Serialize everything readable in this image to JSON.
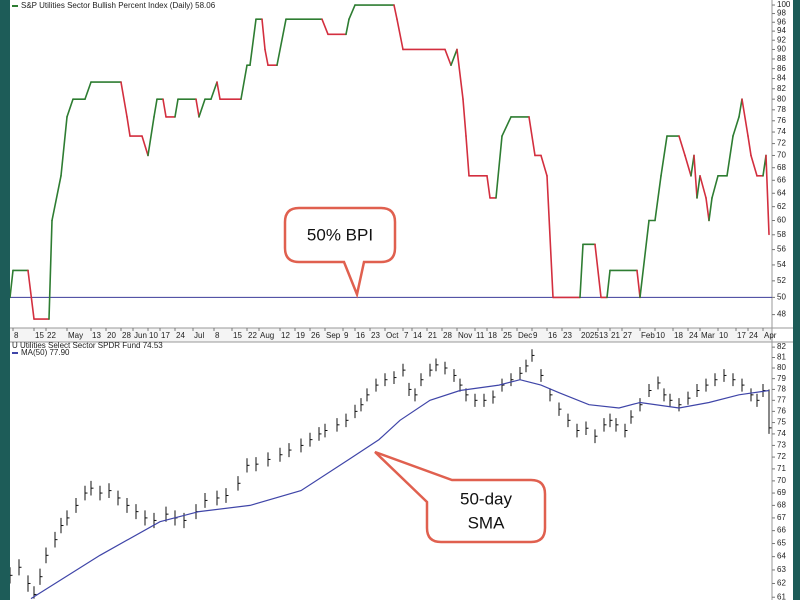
{
  "chart_data": [
    {
      "type": "step",
      "title": "S&P Utilities Sector Bullish Percent Index (Daily) 58.06",
      "up_color": "#2e7d32",
      "down_color": "#d32f3f",
      "xlim": [
        0,
        254
      ],
      "xticks": [
        {
          "value": 1,
          "label": "8"
        },
        {
          "value": 8,
          "label": "15"
        },
        {
          "value": 12,
          "label": "22"
        },
        {
          "value": 19,
          "label": "May"
        },
        {
          "value": 27,
          "label": "13"
        },
        {
          "value": 32,
          "label": "20"
        },
        {
          "value": 37,
          "label": "28"
        },
        {
          "value": 41,
          "label": "Jun"
        },
        {
          "value": 46,
          "label": "10"
        },
        {
          "value": 50,
          "label": "17"
        },
        {
          "value": 55,
          "label": "24"
        },
        {
          "value": 61,
          "label": "Jul"
        },
        {
          "value": 68,
          "label": "8"
        },
        {
          "value": 74,
          "label": "15"
        },
        {
          "value": 79,
          "label": "22"
        },
        {
          "value": 83,
          "label": "Aug"
        },
        {
          "value": 90,
          "label": "12"
        },
        {
          "value": 95,
          "label": "19"
        },
        {
          "value": 100,
          "label": "26"
        },
        {
          "value": 105,
          "label": "Sep"
        },
        {
          "value": 111,
          "label": "9"
        },
        {
          "value": 115,
          "label": "16"
        },
        {
          "value": 120,
          "label": "23"
        },
        {
          "value": 125,
          "label": "Oct"
        },
        {
          "value": 131,
          "label": "7"
        },
        {
          "value": 134,
          "label": "14"
        },
        {
          "value": 139,
          "label": "21"
        },
        {
          "value": 144,
          "label": "28"
        },
        {
          "value": 149,
          "label": "Nov"
        },
        {
          "value": 155,
          "label": "11"
        },
        {
          "value": 159,
          "label": "18"
        },
        {
          "value": 164,
          "label": "25"
        },
        {
          "value": 169,
          "label": "Dec"
        },
        {
          "value": 174,
          "label": "9"
        },
        {
          "value": 179,
          "label": "16"
        },
        {
          "value": 184,
          "label": "23"
        },
        {
          "value": 190,
          "label": "2025"
        },
        {
          "value": 196,
          "label": "13"
        },
        {
          "value": 200,
          "label": "21"
        },
        {
          "value": 204,
          "label": "27"
        },
        {
          "value": 210,
          "label": "Feb"
        },
        {
          "value": 215,
          "label": "10"
        },
        {
          "value": 221,
          "label": "18"
        },
        {
          "value": 226,
          "label": "24"
        },
        {
          "value": 230,
          "label": "Mar"
        },
        {
          "value": 236,
          "label": "10"
        },
        {
          "value": 242,
          "label": "17"
        },
        {
          "value": 246,
          "label": "24"
        },
        {
          "value": 251,
          "label": "Apr"
        }
      ],
      "log_scale": true,
      "ylim": [
        46.5,
        101.2
      ],
      "yticks": [
        100,
        98,
        96,
        94,
        92,
        90,
        88,
        86,
        84,
        82,
        80,
        78,
        76,
        74,
        72,
        70,
        68,
        66,
        64,
        62,
        60,
        58,
        56,
        54,
        52,
        50,
        48
      ],
      "x": [
        0,
        1,
        6,
        8,
        13,
        14,
        17,
        19,
        21,
        25,
        27,
        37,
        39,
        40,
        44,
        46,
        48,
        49,
        51,
        52,
        55,
        56,
        62,
        63,
        65,
        67,
        69,
        70,
        77,
        79,
        80,
        82,
        84,
        85,
        86,
        89,
        92,
        104,
        106,
        112,
        113,
        115,
        128,
        129,
        131,
        145,
        147,
        149,
        151,
        152,
        153,
        159,
        160,
        162,
        164,
        167,
        173,
        175,
        177,
        179,
        181,
        190,
        191,
        195,
        197,
        199,
        200,
        209,
        210,
        213,
        215,
        217,
        219,
        223,
        225,
        227,
        228,
        229,
        230,
        232,
        233,
        234,
        236,
        239,
        241,
        243,
        244,
        246,
        247,
        249,
        251,
        252,
        253
      ],
      "values": [
        50,
        53.3,
        53.3,
        47.5,
        47.5,
        60,
        66.7,
        76.7,
        80,
        80,
        83.3,
        83.3,
        76.7,
        73.3,
        73.3,
        70,
        76.7,
        80,
        80,
        76.7,
        76.7,
        80,
        80,
        76.7,
        80,
        80,
        83.3,
        80,
        80,
        86.7,
        86.7,
        96.7,
        96.7,
        90,
        86.7,
        86.7,
        96.7,
        96.7,
        93.3,
        93.3,
        96.7,
        100,
        100,
        96.7,
        90,
        90,
        86.7,
        90,
        80,
        73.3,
        66.7,
        66.7,
        63.3,
        63.3,
        73.3,
        76.7,
        76.7,
        70,
        70,
        66.7,
        50,
        50,
        56.7,
        56.7,
        50,
        50,
        53.3,
        53.3,
        50,
        60,
        60,
        66.7,
        73.3,
        73.3,
        70,
        66.7,
        70,
        63.3,
        66.7,
        63.3,
        60,
        63.3,
        66.7,
        66.7,
        73.3,
        76.7,
        80,
        73.3,
        70,
        66.7,
        66.7,
        70,
        58.06
      ],
      "hline": {
        "value": 50,
        "color": "#3b3b9a"
      },
      "annotation": "50% BPI"
    },
    {
      "type": "ohlc",
      "title": "U Utilities Select Sector SPDR Fund 74.53",
      "color": "#111111",
      "xlim": [
        0,
        254
      ],
      "log_scale": true,
      "ylim": [
        60.8,
        82.5
      ],
      "yticks": [
        82,
        81,
        80,
        79,
        78,
        77,
        76,
        75,
        74,
        73,
        72,
        71,
        70,
        69,
        68,
        67,
        66,
        65,
        64,
        63,
        62,
        61
      ],
      "x": [
        0,
        3,
        6,
        8,
        10,
        12,
        15,
        17,
        19,
        22,
        25,
        27,
        30,
        33,
        36,
        39,
        42,
        45,
        48,
        52,
        55,
        58,
        62,
        65,
        69,
        72,
        76,
        79,
        82,
        86,
        90,
        93,
        97,
        100,
        103,
        105,
        109,
        112,
        115,
        117,
        119,
        122,
        125,
        128,
        131,
        133,
        135,
        137,
        140,
        142,
        145,
        148,
        150,
        152,
        155,
        158,
        161,
        164,
        167,
        170,
        172,
        174,
        177,
        180,
        183,
        186,
        189,
        192,
        195,
        198,
        200,
        202,
        205,
        207,
        210,
        213,
        216,
        218,
        220,
        223,
        226,
        229,
        232,
        235,
        238,
        241,
        244,
        247,
        249,
        251,
        253
      ],
      "high": [
        63.2,
        63.8,
        62.6,
        61.8,
        63.1,
        64.7,
        65.9,
        67.0,
        67.6,
        68.6,
        69.6,
        70.0,
        69.6,
        69.8,
        69.2,
        68.6,
        68.1,
        67.6,
        67.4,
        67.9,
        67.6,
        67.4,
        68.1,
        69.0,
        69.2,
        69.4,
        70.4,
        71.9,
        72.0,
        72.4,
        72.8,
        73.2,
        73.6,
        74.1,
        74.6,
        74.9,
        75.4,
        75.8,
        76.6,
        77.2,
        78.1,
        79.0,
        79.5,
        79.7,
        80.4,
        78.6,
        78.1,
        79.5,
        80.4,
        80.9,
        80.6,
        79.9,
        79.0,
        78.1,
        77.6,
        77.6,
        77.9,
        79.0,
        79.5,
        80.1,
        80.8,
        81.8,
        79.9,
        78.1,
        76.8,
        75.8,
        74.9,
        75.1,
        74.4,
        75.4,
        75.8,
        75.4,
        74.9,
        76.1,
        77.2,
        78.5,
        79.2,
        78.1,
        77.6,
        77.2,
        77.8,
        78.5,
        79.0,
        79.5,
        79.9,
        79.5,
        79.0,
        78.1,
        77.6,
        78.5,
        78.0
      ],
      "low": [
        62.0,
        62.6,
        61.4,
        60.9,
        61.9,
        63.5,
        64.7,
        65.8,
        66.4,
        67.4,
        68.4,
        68.8,
        68.4,
        68.6,
        68.0,
        67.4,
        66.9,
        66.4,
        66.2,
        66.7,
        66.4,
        66.2,
        66.9,
        67.8,
        68.0,
        68.2,
        69.2,
        70.7,
        70.8,
        71.2,
        71.6,
        72.0,
        72.4,
        72.9,
        73.4,
        73.7,
        74.2,
        74.6,
        75.4,
        76.0,
        76.9,
        77.8,
        78.3,
        78.5,
        79.2,
        77.4,
        76.9,
        78.3,
        79.2,
        79.7,
        79.4,
        78.7,
        77.8,
        76.9,
        76.4,
        76.4,
        76.7,
        77.8,
        78.3,
        78.9,
        79.6,
        80.6,
        78.7,
        76.9,
        75.6,
        74.6,
        73.7,
        73.9,
        73.2,
        74.2,
        74.6,
        74.2,
        73.7,
        74.9,
        76.0,
        77.3,
        78.0,
        76.9,
        76.4,
        76.0,
        76.6,
        77.3,
        77.8,
        78.3,
        78.7,
        78.3,
        77.8,
        76.9,
        76.4,
        77.3,
        74.0
      ],
      "close": [
        62.6,
        63.2,
        62.0,
        61.2,
        62.5,
        64.1,
        65.3,
        66.4,
        67.0,
        68.0,
        69.0,
        69.4,
        69.0,
        69.2,
        68.6,
        68.0,
        67.5,
        67.0,
        66.8,
        67.3,
        67.0,
        66.8,
        67.5,
        68.4,
        68.6,
        68.8,
        69.8,
        71.3,
        71.4,
        71.8,
        72.2,
        72.6,
        73.0,
        73.5,
        74.0,
        74.3,
        74.8,
        75.2,
        76.0,
        76.6,
        77.5,
        78.4,
        78.9,
        79.1,
        79.8,
        78.0,
        77.5,
        78.9,
        79.8,
        80.3,
        80.0,
        79.3,
        78.4,
        77.5,
        77.0,
        77.0,
        77.3,
        78.4,
        78.9,
        79.5,
        80.2,
        81.2,
        79.3,
        77.5,
        76.2,
        75.2,
        74.3,
        74.5,
        73.8,
        74.8,
        75.2,
        74.8,
        74.3,
        75.5,
        76.6,
        77.9,
        78.6,
        77.5,
        77.0,
        76.6,
        77.2,
        77.9,
        78.4,
        78.9,
        79.3,
        78.9,
        78.4,
        77.5,
        77.0,
        77.9,
        74.53
      ],
      "series": [
        {
          "name": "MA(50) 77.90",
          "color": "#3f45a8",
          "x": [
            7,
            30,
            50,
            63,
            80,
            97,
            113,
            123,
            130,
            140,
            150,
            163,
            170,
            177,
            183,
            193,
            203,
            210,
            223,
            233,
            243,
            253
          ],
          "values": [
            60.9,
            64.1,
            66.7,
            67.5,
            68.0,
            69.2,
            71.8,
            73.5,
            75.2,
            77.0,
            77.9,
            78.4,
            78.9,
            78.4,
            77.7,
            76.6,
            76.3,
            76.8,
            76.3,
            76.8,
            77.5,
            77.9
          ]
        }
      ],
      "annotation": [
        "50-day",
        "SMA"
      ]
    }
  ]
}
